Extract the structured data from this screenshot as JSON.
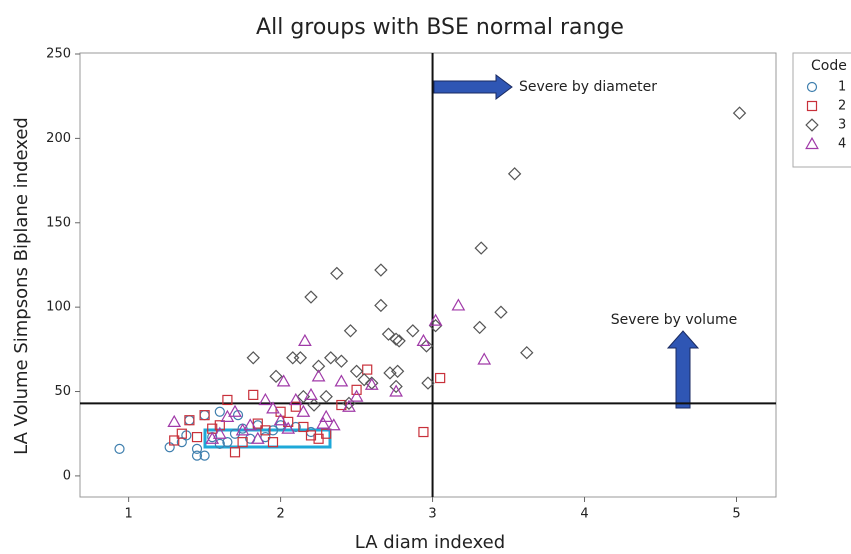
{
  "chart_data": {
    "type": "scatter",
    "title": "All groups with BSE normal range",
    "x_label": "LA diam indexed",
    "y_label": "LA Volume Simpsons Biplane indexed",
    "xlim": [
      0.68,
      5.26
    ],
    "ylim": [
      -12.5,
      250.6
    ],
    "xticks": [
      1,
      2,
      3,
      4,
      5
    ],
    "yticks": [
      0,
      50,
      100,
      150,
      200,
      250
    ],
    "reference_lines": {
      "x": 3,
      "y": 43
    },
    "annotations": [
      "Severe by diameter",
      "Severe by volume"
    ],
    "legend_title": "Code",
    "legend_position": "outside-right",
    "series": [
      {
        "name": "1",
        "color": "#3f7fae",
        "marker": "circle",
        "x": [
          0.94,
          1.27,
          1.35,
          1.45,
          1.5,
          1.4,
          1.6,
          1.5,
          1.55,
          1.65,
          1.7,
          1.75,
          1.8,
          1.85,
          1.9,
          1.95,
          2.0,
          2.1,
          2.2,
          1.45,
          1.6,
          1.72,
          1.38
        ],
        "values": [
          16,
          17,
          20,
          12,
          12,
          33,
          38,
          36,
          23,
          20,
          25,
          28,
          22,
          30,
          23,
          27,
          30,
          29,
          26,
          16,
          19,
          36,
          24
        ]
      },
      {
        "name": "2",
        "color": "#c8303a",
        "marker": "square",
        "x": [
          3.05,
          2.94,
          2.57,
          2.5,
          1.82,
          1.65,
          1.4,
          1.35,
          1.3,
          1.45,
          1.55,
          1.6,
          1.7,
          1.75,
          1.9,
          2.0,
          2.05,
          2.1,
          2.2,
          2.25,
          2.3,
          1.95,
          1.85,
          2.4,
          1.5,
          2.15
        ],
        "values": [
          58,
          26,
          63,
          51,
          48,
          45,
          33,
          25,
          21,
          23,
          28,
          30,
          14,
          20,
          27,
          38,
          32,
          41,
          24,
          22,
          25,
          20,
          31,
          42,
          36,
          29
        ]
      },
      {
        "name": "3",
        "color": "#555555",
        "marker": "diamond",
        "x": [
          5.02,
          3.54,
          3.32,
          2.37,
          2.66,
          2.2,
          2.66,
          3.45,
          3.31,
          3.62,
          2.87,
          2.46,
          2.71,
          2.78,
          2.76,
          2.96,
          3.02,
          2.13,
          2.08,
          1.82,
          2.25,
          2.33,
          2.4,
          1.97,
          2.5,
          2.6,
          2.72,
          2.76,
          2.97,
          2.45,
          2.3,
          2.15,
          2.22,
          2.55,
          2.77
        ],
        "values": [
          215,
          179,
          135,
          120,
          122,
          106,
          101,
          97,
          88,
          73,
          86,
          86,
          84,
          80,
          81,
          77,
          89,
          70,
          70,
          70,
          65,
          70,
          68,
          59,
          62,
          55,
          61,
          53,
          55,
          43,
          47,
          47,
          42,
          57,
          62
        ]
      },
      {
        "name": "4",
        "color": "#a03aa8",
        "marker": "triangle",
        "x": [
          3.17,
          3.02,
          3.34,
          2.94,
          2.76,
          2.6,
          2.16,
          2.02,
          2.25,
          2.4,
          2.5,
          2.3,
          2.1,
          1.95,
          2.0,
          1.8,
          1.6,
          1.3,
          1.7,
          1.85,
          2.15,
          2.28,
          1.9,
          2.05,
          1.75,
          1.55,
          2.2,
          2.35,
          1.65,
          2.45
        ],
        "values": [
          101,
          92,
          69,
          80,
          50,
          54,
          80,
          56,
          59,
          56,
          47,
          35,
          45,
          40,
          33,
          30,
          25,
          32,
          38,
          22,
          38,
          31,
          45,
          28,
          27,
          22,
          48,
          30,
          35,
          41
        ]
      }
    ]
  }
}
